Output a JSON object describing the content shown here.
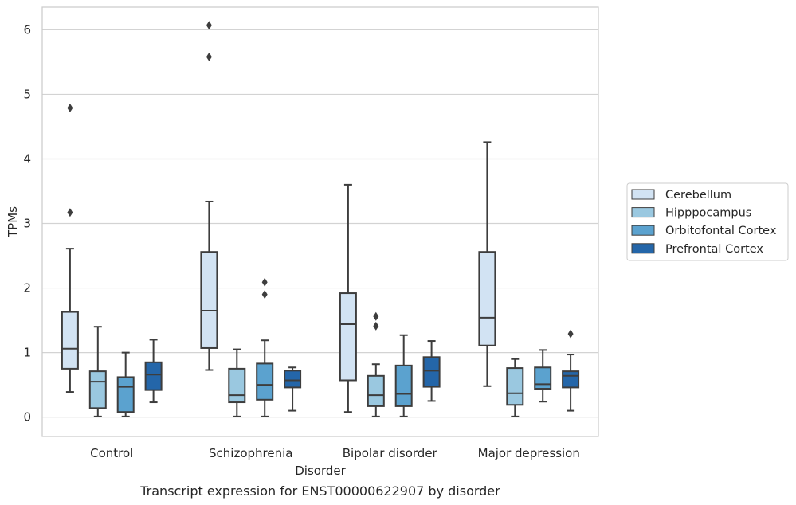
{
  "chart_data": {
    "type": "box",
    "title": "",
    "xlabel": "Disorder",
    "ylabel": "TPMs",
    "caption": "Transcript expression for ENST00000622907 by disorder",
    "ylim": [
      -0.3,
      6.35
    ],
    "yticks": [
      0,
      1,
      2,
      3,
      4,
      5,
      6
    ],
    "grid": true,
    "legend_position": "right",
    "categories": [
      "Control",
      "Schizophrenia",
      "Bipolar disorder",
      "Major depression"
    ],
    "series": [
      {
        "name": "Cerebellum",
        "color": "#d2e3f3",
        "boxes": [
          {
            "whislo": 0.39,
            "q1": 0.75,
            "med": 1.06,
            "q3": 1.63,
            "whishi": 2.61,
            "fliers": [
              3.17,
              4.79
            ]
          },
          {
            "whislo": 0.73,
            "q1": 1.07,
            "med": 1.65,
            "q3": 2.56,
            "whishi": 3.34,
            "fliers": [
              5.58,
              6.07
            ]
          },
          {
            "whislo": 0.08,
            "q1": 0.57,
            "med": 1.44,
            "q3": 1.92,
            "whishi": 3.6,
            "fliers": []
          },
          {
            "whislo": 0.48,
            "q1": 1.11,
            "med": 1.54,
            "q3": 2.56,
            "whishi": 4.26,
            "fliers": []
          }
        ]
      },
      {
        "name": "Hipppocampus",
        "color": "#9ac8e0",
        "boxes": [
          {
            "whislo": 0.01,
            "q1": 0.14,
            "med": 0.55,
            "q3": 0.71,
            "whishi": 1.4,
            "fliers": []
          },
          {
            "whislo": 0.01,
            "q1": 0.23,
            "med": 0.34,
            "q3": 0.75,
            "whishi": 1.05,
            "fliers": []
          },
          {
            "whislo": 0.01,
            "q1": 0.17,
            "med": 0.34,
            "q3": 0.64,
            "whishi": 0.82,
            "fliers": [
              1.41,
              1.56
            ]
          },
          {
            "whislo": 0.01,
            "q1": 0.19,
            "med": 0.37,
            "q3": 0.76,
            "whishi": 0.9,
            "fliers": []
          }
        ]
      },
      {
        "name": "Orbitofontal Cortex",
        "color": "#5ba2cf",
        "boxes": [
          {
            "whislo": 0.01,
            "q1": 0.08,
            "med": 0.47,
            "q3": 0.62,
            "whishi": 1.0,
            "fliers": []
          },
          {
            "whislo": 0.01,
            "q1": 0.27,
            "med": 0.5,
            "q3": 0.83,
            "whishi": 1.19,
            "fliers": [
              1.9,
              2.09
            ]
          },
          {
            "whislo": 0.01,
            "q1": 0.17,
            "med": 0.36,
            "q3": 0.8,
            "whishi": 1.27,
            "fliers": []
          },
          {
            "whislo": 0.24,
            "q1": 0.44,
            "med": 0.51,
            "q3": 0.77,
            "whishi": 1.04,
            "fliers": []
          }
        ]
      },
      {
        "name": "Prefrontal Cortex",
        "color": "#2466a9",
        "boxes": [
          {
            "whislo": 0.23,
            "q1": 0.42,
            "med": 0.66,
            "q3": 0.85,
            "whishi": 1.2,
            "fliers": []
          },
          {
            "whislo": 0.1,
            "q1": 0.46,
            "med": 0.57,
            "q3": 0.72,
            "whishi": 0.77,
            "fliers": []
          },
          {
            "whislo": 0.25,
            "q1": 0.47,
            "med": 0.72,
            "q3": 0.93,
            "whishi": 1.18,
            "fliers": []
          },
          {
            "whislo": 0.1,
            "q1": 0.46,
            "med": 0.64,
            "q3": 0.71,
            "whishi": 0.97,
            "fliers": [
              1.29
            ]
          }
        ]
      }
    ]
  }
}
